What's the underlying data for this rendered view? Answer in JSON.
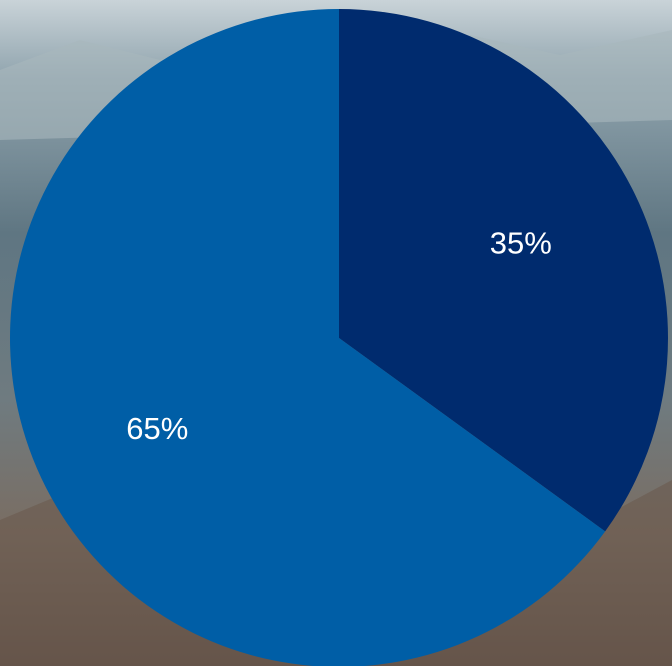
{
  "chart_data": {
    "type": "pie",
    "values": [
      35,
      65
    ],
    "value_labels": [
      "35%",
      "65%"
    ],
    "colors": [
      "#002b6e",
      "#005ea6"
    ]
  }
}
